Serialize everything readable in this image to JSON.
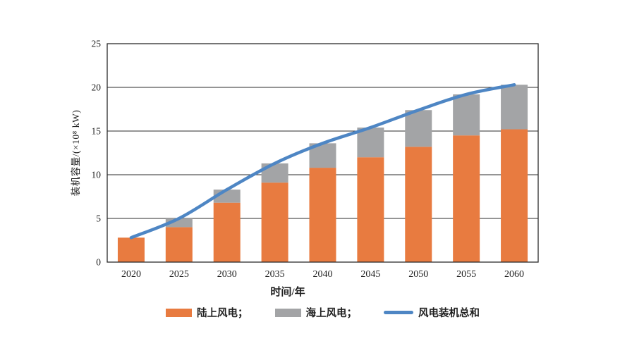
{
  "figure": {
    "background": "#ffffff"
  },
  "axis": {
    "text_color": "#1f1f1f",
    "line_color": "#2b2b2b"
  },
  "chart_data": {
    "type": "bar",
    "subtype": "stacked-bars-with-total-line",
    "title": "",
    "categories": [
      "2020",
      "2025",
      "2030",
      "2035",
      "2040",
      "2045",
      "2050",
      "2055",
      "2060"
    ],
    "series": [
      {
        "id": "onshore-wind",
        "name": "陆上风电",
        "type": "bar",
        "color": "#E87B40",
        "values": [
          2.8,
          4.0,
          6.8,
          9.1,
          10.8,
          12.0,
          13.2,
          14.5,
          15.2
        ]
      },
      {
        "id": "offshore-wind",
        "name": "海上风电",
        "type": "bar",
        "color": "#A3A4A6",
        "values": [
          0,
          1.0,
          1.5,
          2.2,
          2.8,
          3.4,
          4.2,
          4.7,
          5.1
        ]
      },
      {
        "id": "total-wind",
        "name": "风电装机总和",
        "type": "line",
        "color": "#4E86C4",
        "values": [
          2.8,
          5.0,
          8.3,
          11.3,
          13.6,
          15.4,
          17.4,
          19.2,
          20.3
        ]
      }
    ],
    "xlabel": "时间/年",
    "ylabel": "装机容量/(×10⁸ kW)",
    "ylim": [
      0,
      25
    ],
    "yticks": [
      0,
      5,
      10,
      15,
      20,
      25
    ],
    "grid": true,
    "legend_position": "bottom",
    "bar_stacked": true
  },
  "legend": {
    "items": [
      {
        "label": "陆上风电；",
        "swatch": "rect",
        "color": "#E87B40"
      },
      {
        "label": "海上风电；",
        "swatch": "rect",
        "color": "#A3A4A6"
      },
      {
        "label": "风电装机总和",
        "swatch": "line",
        "color": "#4E86C4"
      }
    ]
  }
}
